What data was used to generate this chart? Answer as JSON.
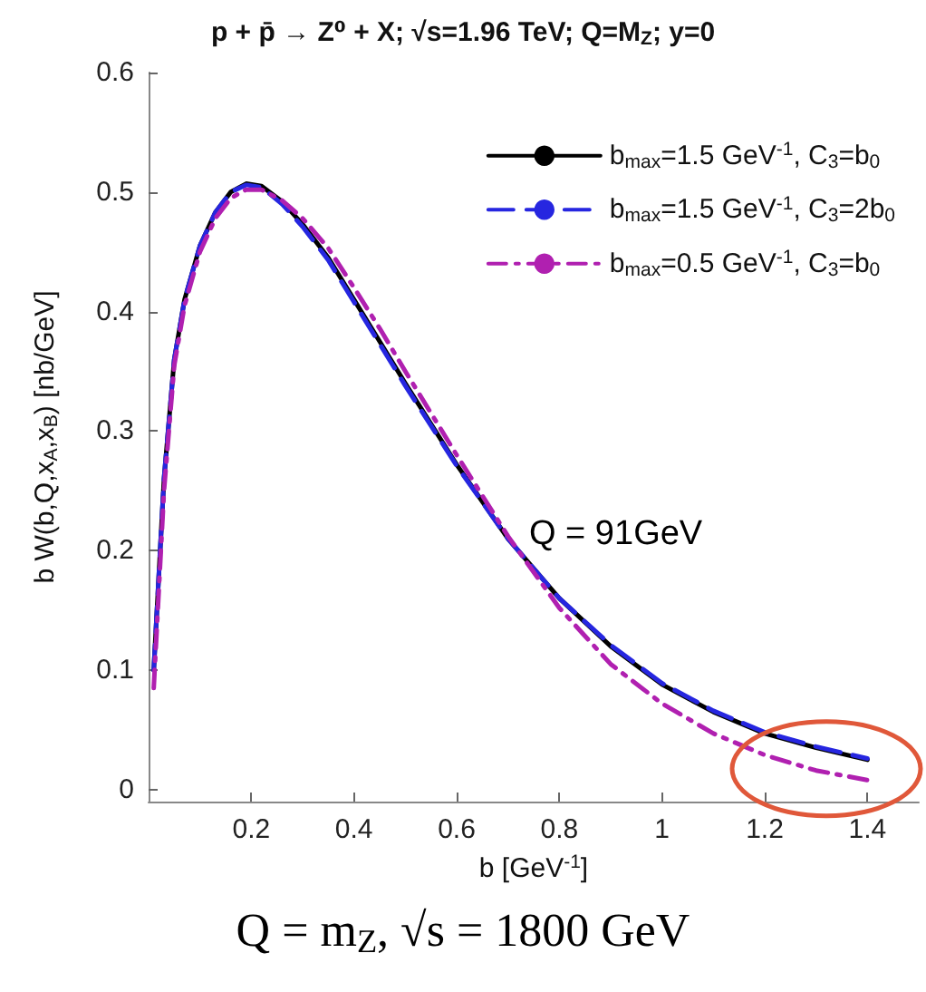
{
  "chart_data": {
    "type": "line",
    "title": "p + p̄ → Z⁰ + X; √s=1.96 TeV; Q=M$_{Z}$; y=0",
    "xlabel": "b [GeV$^{-1}$]",
    "ylabel": "b W(b,Q,x$_{A}$,x$_{B}$) [nb/GeV]",
    "annotations": [
      "Q = 91GeV",
      "Q = m$_{Z}$, √s = 1800 GeV"
    ],
    "x": [
      0.01,
      0.03,
      0.05,
      0.07,
      0.1,
      0.13,
      0.16,
      0.19,
      0.22,
      0.26,
      0.3,
      0.35,
      0.4,
      0.45,
      0.5,
      0.6,
      0.7,
      0.8,
      0.9,
      1.0,
      1.1,
      1.2,
      1.3,
      1.4
    ],
    "series": [
      {
        "name": "b$_{max}$=1.5 GeV$^{-1}$, C$_{3}$=b$_{0}$",
        "color": "#000000",
        "line_style": "solid",
        "values": [
          0.1,
          0.26,
          0.36,
          0.41,
          0.455,
          0.483,
          0.5,
          0.507,
          0.505,
          0.492,
          0.473,
          0.445,
          0.41,
          0.375,
          0.34,
          0.272,
          0.21,
          0.16,
          0.12,
          0.088,
          0.065,
          0.047,
          0.035,
          0.025
        ]
      },
      {
        "name": "b$_{max}$=1.5 GeV$^{-1}$, C$_{3}$=2b$_{0}$",
        "color": "#2626e0",
        "line_style": "dashed",
        "values": [
          0.1,
          0.26,
          0.36,
          0.41,
          0.455,
          0.483,
          0.5,
          0.506,
          0.504,
          0.49,
          0.471,
          0.443,
          0.408,
          0.373,
          0.338,
          0.271,
          0.21,
          0.16,
          0.121,
          0.089,
          0.066,
          0.048,
          0.036,
          0.026
        ]
      },
      {
        "name": "b$_{max}$=0.5 GeV$^{-1}$, C$_{3}$=b$_{0}$",
        "color": "#b020b0",
        "line_style": "dashdot",
        "values": [
          0.085,
          0.25,
          0.355,
          0.405,
          0.45,
          0.478,
          0.495,
          0.502,
          0.502,
          0.493,
          0.478,
          0.453,
          0.42,
          0.386,
          0.35,
          0.28,
          0.212,
          0.152,
          0.105,
          0.072,
          0.047,
          0.029,
          0.016,
          0.008
        ]
      }
    ],
    "xlim": [
      0,
      1.5
    ],
    "xticks": [
      0.2,
      0.4,
      0.6,
      0.8,
      1,
      1.2,
      1.4
    ],
    "ylim": [
      -0.01,
      0.6
    ],
    "yticks": [
      0,
      0.1,
      0.2,
      0.3,
      0.4,
      0.5,
      0.6
    ],
    "grid": false,
    "legend": "top right",
    "marker": "none"
  }
}
